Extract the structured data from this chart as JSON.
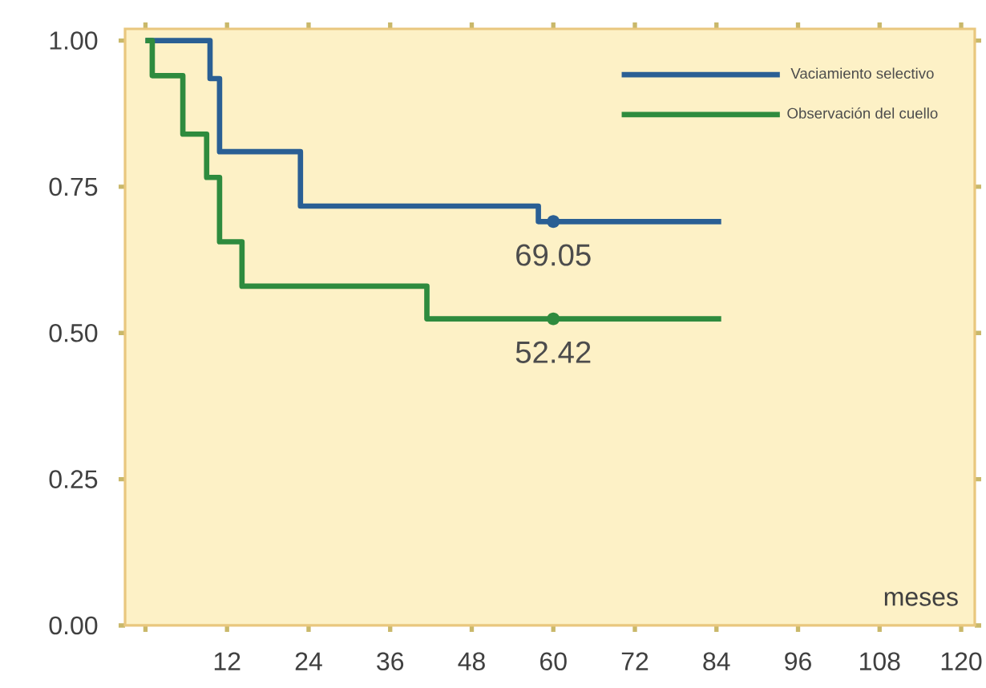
{
  "chart_data": {
    "type": "step",
    "xlabel": "meses",
    "xlim": [
      -3,
      122
    ],
    "ylim": [
      0,
      1.02
    ],
    "xticks": [
      {
        "value": 0,
        "label": null
      },
      12,
      24,
      36,
      48,
      60,
      72,
      84,
      96,
      108,
      120
    ],
    "yticks": [
      {
        "value": 0,
        "label": "0.00"
      },
      {
        "value": 0.25,
        "label": "0.25"
      },
      {
        "value": 0.5,
        "label": "0.50"
      },
      {
        "value": 0.75,
        "label": "0.75"
      },
      {
        "value": 1,
        "label": "1.00"
      }
    ],
    "series": [
      {
        "name": "Vaciamiento selectivo",
        "color": "#2a5f94",
        "x": [
          0,
          9.5,
          10.9,
          22.8,
          57.8,
          84.7
        ],
        "values": [
          1,
          0.935,
          0.81,
          0.717,
          0.6905,
          0.6905
        ]
      },
      {
        "name": "Observación del cuello",
        "color": "#2e8b3e",
        "x": [
          0,
          1,
          5.5,
          9,
          10.9,
          14.2,
          41.4,
          84.7
        ],
        "values": [
          1,
          0.94,
          0.84,
          0.766,
          0.656,
          0.58,
          0.5242,
          0.5242
        ]
      }
    ],
    "annotations": [
      {
        "text": "69.05",
        "x": 60,
        "y": 0.6905
      },
      {
        "text": "52.42",
        "x": 60,
        "y": 0.5242
      }
    ],
    "legend": "top right",
    "grid": false
  }
}
